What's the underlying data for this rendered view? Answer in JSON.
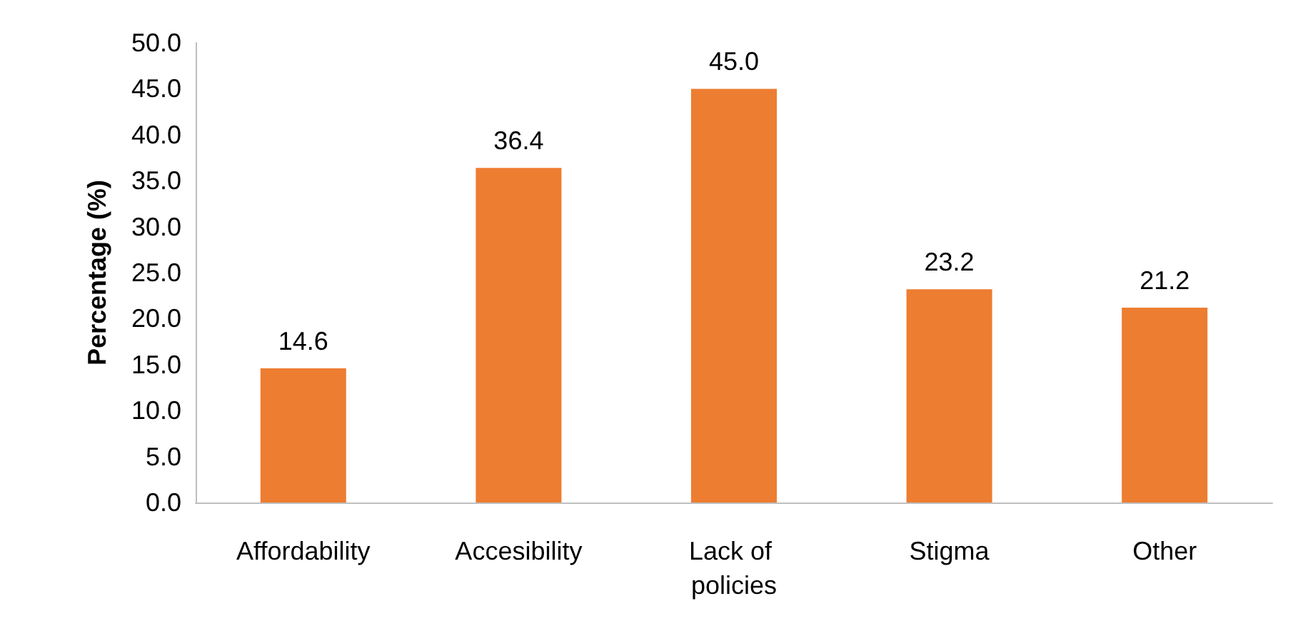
{
  "chart_data": {
    "type": "bar",
    "ylabel": "Percentage (%)",
    "categories": [
      "Affordability",
      "Accesibility",
      "Lack of policies",
      "Stigma",
      "Other"
    ],
    "values": [
      14.6,
      36.4,
      45.0,
      23.2,
      21.2
    ],
    "value_labels": [
      "14.6",
      "36.4",
      "45.0",
      "23.2",
      "21.2"
    ],
    "color": "#ed7d31",
    "ylim": [
      0,
      50
    ],
    "yticks": [
      {
        "value": 0,
        "label": "0.0"
      },
      {
        "value": 5,
        "label": "5.0"
      },
      {
        "value": 10,
        "label": "10.0"
      },
      {
        "value": 15,
        "label": "15.0"
      },
      {
        "value": 20,
        "label": "20.0"
      },
      {
        "value": 25,
        "label": "25.0"
      },
      {
        "value": 30,
        "label": "30.0"
      },
      {
        "value": 35,
        "label": "35.0"
      },
      {
        "value": 40,
        "label": "40.0"
      },
      {
        "value": 45,
        "label": "45.0"
      },
      {
        "value": 50,
        "label": "50.0"
      }
    ],
    "grid": false
  }
}
